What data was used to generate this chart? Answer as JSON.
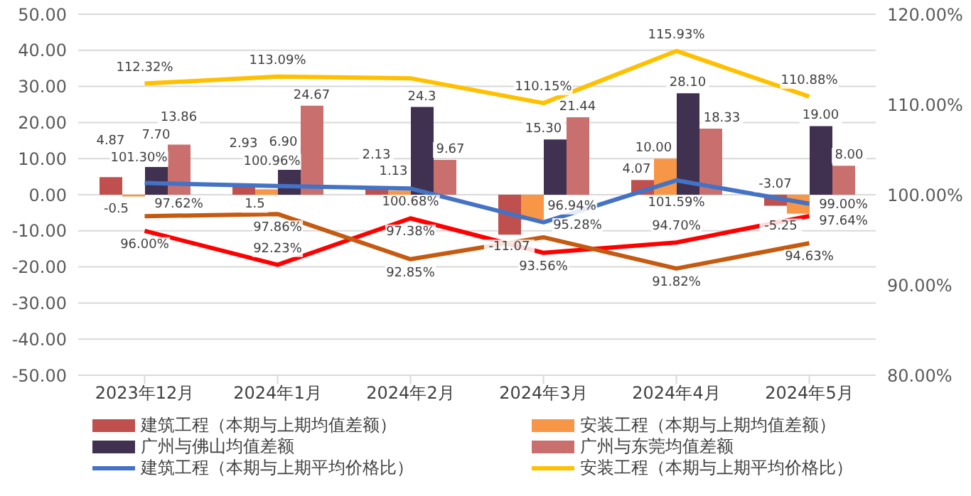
{
  "chart_data": {
    "type": "bar",
    "categories": [
      "2023年12月",
      "2024年1月",
      "2024年2月",
      "2024年3月",
      "2024年4月",
      "2024年5月"
    ],
    "series": [
      {
        "name": "建筑工程（本期与上期均值差额）",
        "color": "#c0504d",
        "values": [
          4.87,
          2.93,
          2.13,
          -11.07,
          4.07,
          -3.07
        ],
        "value_labels": [
          "4.87",
          "2.93",
          "2.13",
          "-11.07",
          "4.07",
          "-3.07"
        ]
      },
      {
        "name": "安装工程（本期与上期均值差额）",
        "color": "#f79646",
        "values": [
          -0.5,
          1.5,
          1.13,
          -7,
          10.0,
          -5.25
        ],
        "value_labels": [
          "-0.5",
          "1.5",
          "1.13",
          null,
          "10.00",
          "-5.25"
        ]
      },
      {
        "name": "广州与佛山均值差额",
        "color": "#403151",
        "values": [
          7.7,
          6.9,
          24.3,
          15.3,
          28.1,
          19.0
        ],
        "value_labels": [
          "7.70",
          "6.90",
          "24.3",
          "15.30",
          "28.10",
          "19.00"
        ]
      },
      {
        "name": "广州与东莞均值差额",
        "color": "#c9706e",
        "values": [
          13.86,
          24.67,
          9.67,
          21.44,
          18.33,
          8.0
        ],
        "value_labels": [
          "13.86",
          "24.67",
          "9.67",
          "21.44",
          "18.33",
          "8.00"
        ]
      },
      {
        "name": "建筑工程（本期与上期平均价格比）",
        "type": "line",
        "axis": "y2",
        "color": "#4472c4",
        "values": [
          101.3,
          100.96,
          100.68,
          96.94,
          101.59,
          99.0
        ],
        "value_labels": [
          "101.30%",
          "100.96%",
          "100.68%",
          "96.94%",
          "101.59%",
          "99.00%"
        ]
      },
      {
        "name": "安装工程（本期与上期平均价格比）",
        "type": "line",
        "axis": "y2",
        "color": "#ffc000",
        "values": [
          112.32,
          113.09,
          112.9,
          110.15,
          115.93,
          110.88
        ],
        "value_labels": [
          "112.32%",
          "113.09%",
          null,
          "110.15%",
          "115.93%",
          "110.88%"
        ]
      },
      {
        "type": "line",
        "axis": "y2",
        "color": "#ff0000",
        "values": [
          96.0,
          92.23,
          97.38,
          93.56,
          94.7,
          97.64
        ],
        "value_labels": [
          "96.00%",
          "92.23%",
          "97.38%",
          "93.56%",
          "94.70%",
          "97.64%"
        ]
      },
      {
        "type": "line",
        "axis": "y2",
        "color": "#c55a11",
        "values": [
          97.62,
          97.86,
          92.85,
          95.28,
          91.82,
          94.63
        ],
        "value_labels": [
          "97.62%",
          "97.86%",
          "92.85%",
          "95.28%",
          "91.82%",
          "94.63%"
        ]
      }
    ],
    "ylim": [
      -50,
      50
    ],
    "yticks": [
      {
        "value": -50,
        "label": "-50.00"
      },
      {
        "value": -40,
        "label": "-40.00"
      },
      {
        "value": -30,
        "label": "-30.00"
      },
      {
        "value": -20,
        "label": "-20.00"
      },
      {
        "value": -10,
        "label": "-10.00"
      },
      {
        "value": 0,
        "label": "0.00"
      },
      {
        "value": 10,
        "label": "10.00"
      },
      {
        "value": 20,
        "label": "20.00"
      },
      {
        "value": 30,
        "label": "30.00"
      },
      {
        "value": 40,
        "label": "40.00"
      },
      {
        "value": 50,
        "label": "50.00"
      }
    ],
    "y2lim": [
      80,
      120
    ],
    "y2ticks": [
      {
        "value": 80,
        "label": "80.00%"
      },
      {
        "value": 90,
        "label": "90.00%"
      },
      {
        "value": 100,
        "label": "100.00%"
      },
      {
        "value": 110,
        "label": "110.00%"
      },
      {
        "value": 120,
        "label": "120.00%"
      }
    ],
    "grid": "y",
    "legend": "bottom",
    "marker": "none"
  }
}
